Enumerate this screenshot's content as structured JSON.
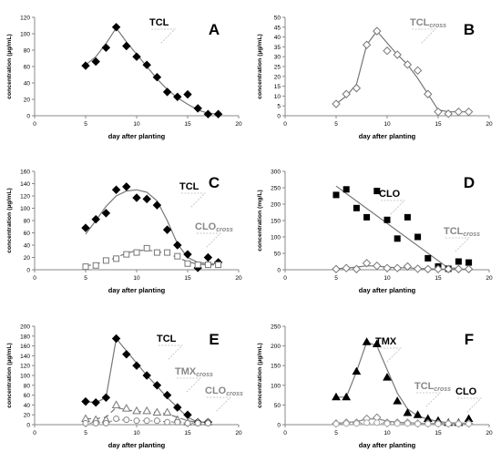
{
  "chart_data": [
    {
      "panel": "A",
      "type": "line",
      "xlabel": "day after planting",
      "ylabel": "concentration (µg/mL)",
      "xlim": [
        0,
        20
      ],
      "ylim": [
        0,
        120
      ],
      "xticks": [
        0,
        5,
        10,
        15,
        20
      ],
      "yticks": [
        0,
        20,
        40,
        60,
        80,
        100,
        120
      ],
      "series": [
        {
          "name": "TCL",
          "sub": "",
          "marker": "diamond-filled",
          "line": "solid",
          "color": "#777777",
          "text_color": "#000000",
          "x": [
            5,
            6,
            7,
            8,
            9,
            10,
            11,
            12,
            13,
            14,
            15,
            16,
            17,
            18
          ],
          "y": [
            61,
            66,
            83,
            108,
            85,
            72,
            62,
            47,
            29,
            23,
            26,
            9,
            2,
            2
          ],
          "fit_x": [
            5,
            6,
            7,
            8,
            9,
            10,
            11,
            12,
            13,
            14,
            15,
            16,
            17,
            18
          ],
          "fit_y": [
            62,
            72,
            88,
            107,
            90,
            75,
            60,
            45,
            32,
            22,
            14,
            7,
            3,
            2
          ]
        }
      ]
    },
    {
      "panel": "B",
      "type": "line",
      "xlabel": "day after planting",
      "ylabel": "concentration (µg/mL)",
      "xlim": [
        0,
        20
      ],
      "ylim": [
        0,
        50
      ],
      "xticks": [
        0,
        5,
        10,
        15,
        20
      ],
      "yticks": [
        0,
        5,
        10,
        15,
        20,
        25,
        30,
        35,
        40,
        45,
        50
      ],
      "series": [
        {
          "name": "TCL",
          "sub": "cross",
          "marker": "diamond-open",
          "line": "solid",
          "color": "#777777",
          "text_color": "#888888",
          "x": [
            5,
            6,
            7,
            8,
            9,
            10,
            11,
            12,
            13,
            14,
            15,
            16,
            17,
            18
          ],
          "y": [
            6,
            11,
            14,
            36,
            43,
            33,
            31,
            26,
            23,
            11,
            2,
            1,
            2,
            2
          ],
          "fit_x": [
            5,
            6,
            7,
            8,
            9,
            10,
            11,
            12,
            13,
            14,
            15,
            16,
            17,
            18
          ],
          "fit_y": [
            6,
            10,
            16,
            36,
            43,
            37,
            31,
            26,
            19,
            11,
            3,
            2,
            2,
            2
          ]
        }
      ]
    },
    {
      "panel": "C",
      "type": "line",
      "xlabel": "day after planting",
      "ylabel": "concentration (µg/mL)",
      "xlim": [
        0,
        20
      ],
      "ylim": [
        0,
        160
      ],
      "xticks": [
        0,
        5,
        10,
        15,
        20
      ],
      "yticks": [
        0,
        20,
        40,
        60,
        80,
        100,
        120,
        140,
        160
      ],
      "series": [
        {
          "name": "TCL",
          "sub": "",
          "marker": "diamond-filled",
          "line": "solid",
          "color": "#777777",
          "text_color": "#000000",
          "x": [
            5,
            6,
            7,
            8,
            9,
            10,
            11,
            12,
            13,
            14,
            15,
            16,
            17,
            18
          ],
          "y": [
            68,
            82,
            92,
            130,
            135,
            117,
            115,
            105,
            65,
            40,
            25,
            3,
            20,
            12
          ],
          "fit_x": [
            5,
            6,
            7,
            8,
            9,
            10,
            11,
            12,
            13,
            14,
            15,
            16,
            17,
            18
          ],
          "fit_y": [
            58,
            80,
            103,
            120,
            128,
            130,
            126,
            112,
            80,
            42,
            20,
            12,
            10,
            10
          ]
        },
        {
          "name": "CLO",
          "sub": "cross",
          "marker": "square-open",
          "line": "dashed",
          "color": "#777777",
          "text_color": "#888888",
          "x": [
            5,
            6,
            7,
            8,
            9,
            10,
            11,
            12,
            13,
            14,
            15,
            16,
            17,
            18
          ],
          "y": [
            5,
            7,
            15,
            18,
            25,
            28,
            35,
            28,
            28,
            22,
            10,
            8,
            8,
            8
          ],
          "fit_x": [
            5,
            6,
            7,
            8,
            9,
            10,
            11,
            12,
            13,
            14,
            15,
            16,
            17,
            18
          ],
          "fit_y": [
            6,
            9,
            14,
            20,
            27,
            31,
            32,
            30,
            26,
            20,
            13,
            9,
            8,
            8
          ]
        }
      ]
    },
    {
      "panel": "D",
      "type": "line",
      "xlabel": "day after planting",
      "ylabel": "concentration (mg/L)",
      "xlim": [
        0,
        20
      ],
      "ylim": [
        0,
        300
      ],
      "xticks": [
        0,
        5,
        10,
        15,
        20
      ],
      "yticks": [
        0,
        50,
        100,
        150,
        200,
        250,
        300
      ],
      "series": [
        {
          "name": "CLO",
          "sub": "",
          "marker": "square-filled",
          "line": "solid",
          "color": "#777777",
          "text_color": "#000000",
          "x": [
            5,
            6,
            7,
            8,
            9,
            10,
            11,
            12,
            13,
            14,
            15,
            16,
            17,
            18
          ],
          "y": [
            228,
            245,
            188,
            160,
            240,
            152,
            95,
            160,
            100,
            35,
            10,
            3,
            25,
            22
          ],
          "fit_x": [
            5,
            16,
            17
          ],
          "fit_y": [
            255,
            5,
            5
          ]
        },
        {
          "name": "TCL",
          "sub": "cross",
          "marker": "diamond-open",
          "line": "solid",
          "color": "#777777",
          "text_color": "#888888",
          "x": [
            5,
            6,
            7,
            8,
            9,
            10,
            11,
            12,
            13,
            14,
            15,
            16,
            17,
            18
          ],
          "y": [
            2,
            5,
            2,
            20,
            12,
            5,
            5,
            10,
            3,
            2,
            2,
            2,
            2,
            2
          ],
          "fit_x": [
            5,
            6,
            7,
            8,
            9,
            10,
            11,
            12,
            13,
            14,
            15,
            16,
            17,
            18
          ],
          "fit_y": [
            3,
            5,
            8,
            12,
            11,
            8,
            6,
            6,
            4,
            3,
            2,
            2,
            2,
            2
          ]
        }
      ]
    },
    {
      "panel": "E",
      "type": "line",
      "xlabel": "day after planting",
      "ylabel": "concentration (µg/mL)",
      "xlim": [
        0,
        20
      ],
      "ylim": [
        0,
        200
      ],
      "xticks": [
        0,
        5,
        10,
        15,
        20
      ],
      "yticks": [
        0,
        20,
        40,
        60,
        80,
        100,
        120,
        140,
        160,
        180,
        200
      ],
      "series": [
        {
          "name": "TCL",
          "sub": "",
          "marker": "diamond-filled",
          "line": "solid",
          "color": "#777777",
          "text_color": "#000000",
          "x": [
            5,
            6,
            7,
            8,
            9,
            10,
            11,
            12,
            13,
            14,
            15,
            16,
            17
          ],
          "y": [
            47,
            45,
            55,
            175,
            143,
            120,
            100,
            80,
            60,
            35,
            20,
            5,
            5
          ],
          "fit_x": [
            5,
            6,
            7,
            8,
            9,
            10,
            11,
            12,
            13,
            14,
            15,
            16,
            17
          ],
          "fit_y": [
            47,
            45,
            55,
            175,
            150,
            125,
            100,
            78,
            55,
            35,
            15,
            5,
            5
          ]
        },
        {
          "name": "TMX",
          "sub": "cross",
          "marker": "triangle-open",
          "line": "dashed",
          "color": "#777777",
          "text_color": "#888888",
          "x": [
            5,
            6,
            7,
            8,
            9,
            10,
            11,
            12,
            13,
            14,
            15,
            16,
            17
          ],
          "y": [
            12,
            10,
            10,
            40,
            33,
            28,
            28,
            25,
            25,
            10,
            5,
            5,
            5
          ],
          "fit_x": [
            5,
            6,
            7,
            8,
            9,
            10,
            11,
            12,
            13,
            14,
            15,
            16,
            17
          ],
          "fit_y": [
            12,
            12,
            15,
            35,
            30,
            27,
            26,
            25,
            22,
            15,
            8,
            5,
            5
          ]
        },
        {
          "name": "CLO",
          "sub": "cross",
          "marker": "circle-open",
          "line": "dotted",
          "color": "#888888",
          "text_color": "#888888",
          "x": [
            5,
            6,
            7,
            8,
            9,
            10,
            11,
            12,
            13,
            14,
            15,
            16,
            17
          ],
          "y": [
            3,
            3,
            3,
            12,
            10,
            8,
            8,
            8,
            5,
            5,
            3,
            3,
            3
          ],
          "fit_x": [
            5,
            6,
            7,
            8,
            9,
            10,
            11,
            12,
            13,
            14,
            15,
            16,
            17
          ],
          "fit_y": [
            3,
            3,
            4,
            10,
            9,
            8,
            8,
            7,
            6,
            5,
            3,
            3,
            3
          ]
        }
      ]
    },
    {
      "panel": "F",
      "type": "line",
      "xlabel": "day after planting",
      "ylabel": "concentration (µg/mL)",
      "xlim": [
        0,
        20
      ],
      "ylim": [
        0,
        250
      ],
      "xticks": [
        0,
        5,
        10,
        15,
        20
      ],
      "yticks": [
        0,
        50,
        100,
        150,
        200,
        250
      ],
      "series": [
        {
          "name": "TMX",
          "sub": "",
          "marker": "triangle-filled",
          "line": "solid",
          "color": "#777777",
          "text_color": "#000000",
          "x": [
            5,
            6,
            7,
            8,
            9,
            10,
            11,
            12,
            13,
            14,
            15,
            16,
            17,
            18
          ],
          "y": [
            70,
            70,
            135,
            210,
            205,
            120,
            60,
            30,
            25,
            15,
            10,
            5,
            5,
            15
          ],
          "fit_x": [
            5,
            6,
            7,
            8,
            9,
            10,
            11,
            12,
            13,
            14,
            15,
            16,
            17,
            18
          ],
          "fit_y": [
            70,
            70,
            135,
            210,
            200,
            140,
            80,
            40,
            22,
            14,
            8,
            5,
            4,
            4
          ]
        },
        {
          "name": "TCL",
          "sub": "cross",
          "marker": "diamond-open",
          "line": "solid",
          "color": "#888888",
          "text_color": "#888888",
          "x": [
            5,
            6,
            7,
            8,
            9,
            10,
            11,
            12,
            13,
            14,
            15,
            16,
            17,
            18
          ],
          "y": [
            3,
            5,
            5,
            15,
            18,
            5,
            5,
            5,
            3,
            3,
            3,
            3,
            3,
            3
          ],
          "fit_x": [
            5,
            6,
            7,
            8,
            9,
            10,
            11,
            12,
            13,
            14,
            15,
            16,
            17,
            18
          ],
          "fit_y": [
            4,
            5,
            8,
            14,
            15,
            9,
            6,
            5,
            4,
            3,
            3,
            3,
            3,
            3
          ]
        },
        {
          "name": "CLO",
          "sub": "",
          "marker": "circle-open",
          "line": "dotted",
          "color": "#aaaaaa",
          "text_color": "#000000",
          "x": [
            5,
            6,
            7,
            8,
            9,
            10,
            11,
            12,
            13,
            14,
            15,
            16,
            17,
            18
          ],
          "y": [
            2,
            3,
            3,
            5,
            5,
            3,
            3,
            3,
            2,
            2,
            2,
            2,
            2,
            2
          ],
          "fit_x": [
            5,
            6,
            7,
            8,
            9,
            10,
            11,
            12,
            13,
            14,
            15,
            16,
            17,
            18
          ],
          "fit_y": [
            2,
            3,
            3,
            4,
            4,
            3,
            3,
            3,
            2,
            2,
            2,
            2,
            2,
            2
          ]
        }
      ]
    }
  ]
}
